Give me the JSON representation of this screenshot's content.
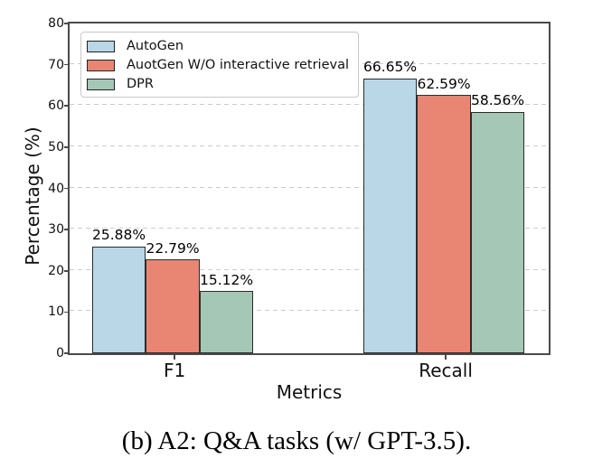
{
  "figure": {
    "caption": "(b) A2: Q&A tasks (w/ GPT-3.5)."
  },
  "chart_data": {
    "type": "bar",
    "title": "",
    "xlabel": "Metrics",
    "ylabel": "Percentage (%)",
    "categories": [
      "F1",
      "Recall"
    ],
    "series": [
      {
        "name": "AutoGen",
        "color": "#b9d7e6",
        "values": [
          25.88,
          66.65
        ],
        "labels": [
          "25.88%",
          "66.65%"
        ]
      },
      {
        "name": "AuotGen W/O interactive retrieval",
        "color": "#e98573",
        "values": [
          22.79,
          62.59
        ],
        "labels": [
          "22.79%",
          "62.59%"
        ]
      },
      {
        "name": "DPR",
        "color": "#a4c8b5",
        "values": [
          15.12,
          58.56
        ],
        "labels": [
          "15.12%",
          "58.56%"
        ]
      }
    ],
    "ylim": [
      0,
      80
    ],
    "yticks": [
      0,
      10,
      20,
      30,
      40,
      50,
      60,
      70,
      80
    ],
    "grid": "horizontal-dashed",
    "legend_position": "upper-left",
    "bar_edge_color": "#2b2b2b",
    "value_label_suffix": "%"
  }
}
